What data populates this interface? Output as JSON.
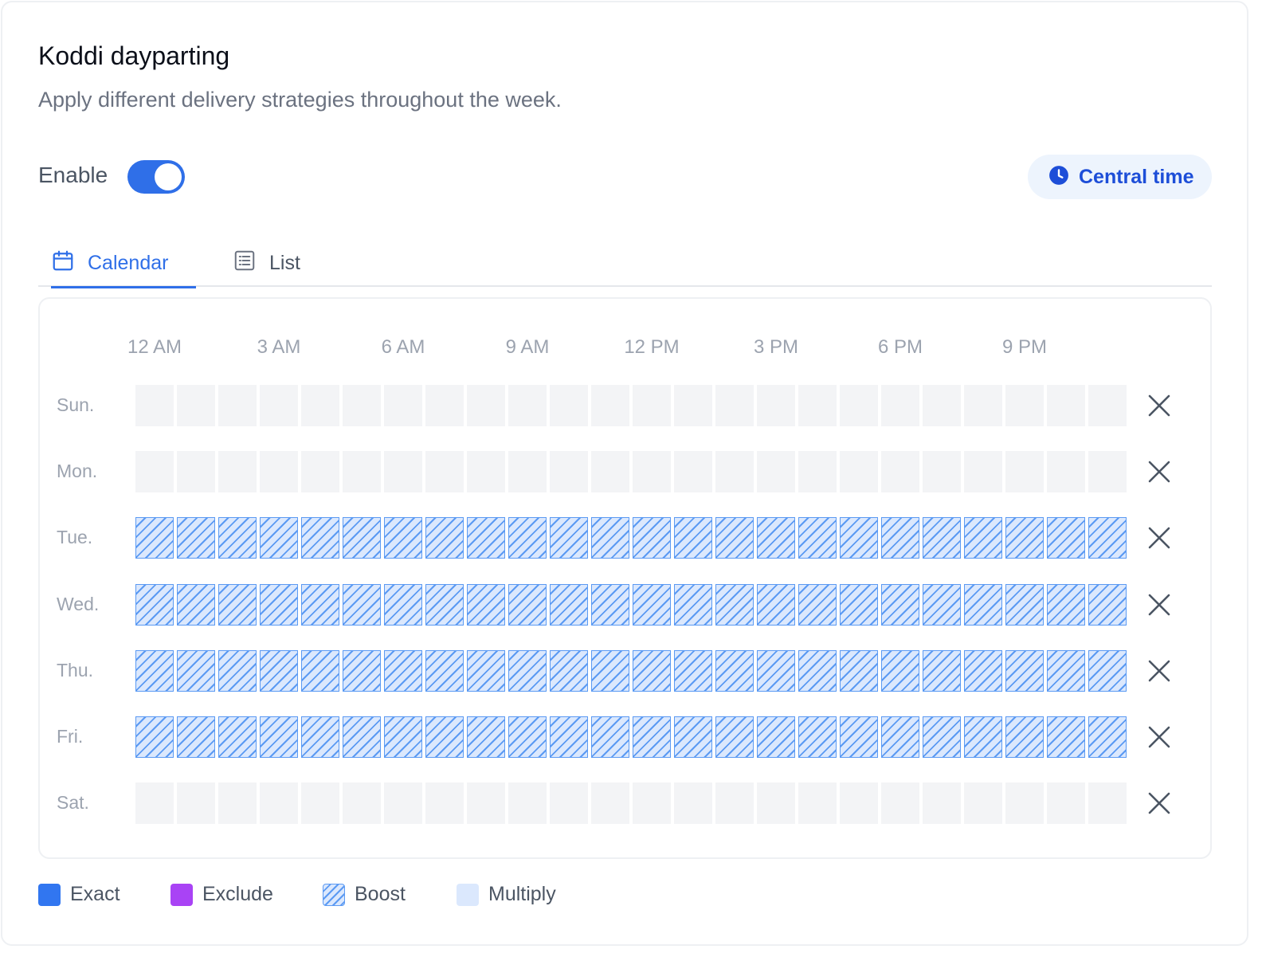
{
  "header": {
    "title": "Koddi dayparting",
    "subtitle": "Apply different delivery strategies throughout the week."
  },
  "enable": {
    "label": "Enable",
    "on": true
  },
  "timezone": {
    "label": "Central time",
    "icon": "clock-icon"
  },
  "tabs": [
    {
      "label": "Calendar",
      "icon": "calendar-icon",
      "active": true
    },
    {
      "label": "List",
      "icon": "list-icon",
      "active": false
    }
  ],
  "calendar": {
    "hour_labels": [
      "12 AM",
      "3 AM",
      "6 AM",
      "9 AM",
      "12 PM",
      "3 PM",
      "6 PM",
      "9 PM"
    ],
    "slots_per_day": 24,
    "days": [
      {
        "label": "Sun.",
        "strategy": "none"
      },
      {
        "label": "Mon.",
        "strategy": "none"
      },
      {
        "label": "Tue.",
        "strategy": "boost"
      },
      {
        "label": "Wed.",
        "strategy": "boost"
      },
      {
        "label": "Thu.",
        "strategy": "boost"
      },
      {
        "label": "Fri.",
        "strategy": "boost"
      },
      {
        "label": "Sat.",
        "strategy": "none"
      }
    ]
  },
  "legend": [
    {
      "key": "exact",
      "label": "Exact",
      "color": "#3176f0"
    },
    {
      "key": "exclude",
      "label": "Exclude",
      "color": "#a943f5"
    },
    {
      "key": "boost",
      "label": "Boost",
      "color": "#5b9af3"
    },
    {
      "key": "multiply",
      "label": "Multiply",
      "color": "#dbe8fd"
    }
  ]
}
